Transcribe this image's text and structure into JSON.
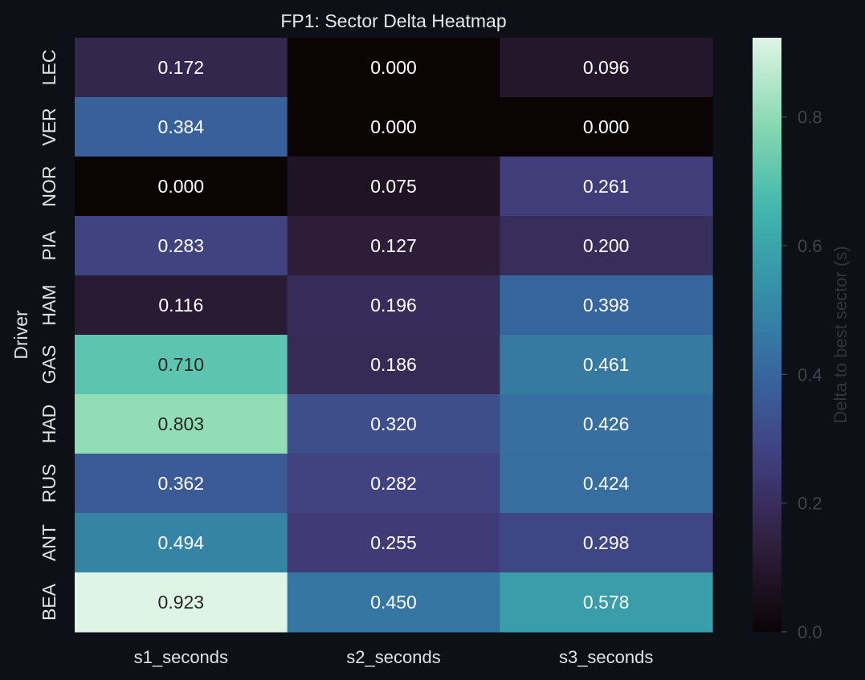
{
  "chart_data": {
    "type": "heatmap",
    "title": "FP1: Sector Delta Heatmap",
    "xlabel": "",
    "ylabel": "Driver",
    "columns": [
      "s1_seconds",
      "s2_seconds",
      "s3_seconds"
    ],
    "rows": [
      "LEC",
      "VER",
      "NOR",
      "PIA",
      "HAM",
      "GAS",
      "HAD",
      "RUS",
      "ANT",
      "BEA"
    ],
    "values": [
      [
        0.172,
        0.0,
        0.096
      ],
      [
        0.384,
        0.0,
        0.0
      ],
      [
        0.0,
        0.075,
        0.261
      ],
      [
        0.283,
        0.127,
        0.2
      ],
      [
        0.116,
        0.196,
        0.398
      ],
      [
        0.71,
        0.186,
        0.461
      ],
      [
        0.803,
        0.32,
        0.426
      ],
      [
        0.362,
        0.282,
        0.424
      ],
      [
        0.494,
        0.255,
        0.298
      ],
      [
        0.923,
        0.45,
        0.578
      ]
    ],
    "value_labels": [
      [
        "0.172",
        "0.000",
        "0.096"
      ],
      [
        "0.384",
        "0.000",
        "0.000"
      ],
      [
        "0.000",
        "0.075",
        "0.261"
      ],
      [
        "0.283",
        "0.127",
        "0.200"
      ],
      [
        "0.116",
        "0.196",
        "0.398"
      ],
      [
        "0.710",
        "0.186",
        "0.461"
      ],
      [
        "0.803",
        "0.320",
        "0.426"
      ],
      [
        "0.362",
        "0.282",
        "0.424"
      ],
      [
        "0.494",
        "0.255",
        "0.298"
      ],
      [
        "0.923",
        "0.450",
        "0.578"
      ]
    ],
    "colorbar": {
      "label": "Delta to best sector (s)",
      "range": [
        0,
        0.923
      ],
      "ticks": [
        0.0,
        0.2,
        0.4,
        0.6,
        0.8
      ],
      "tick_labels": [
        "0.0",
        "0.2",
        "0.4",
        "0.6",
        "0.8"
      ],
      "colormap": "mako",
      "colormap_stops": [
        "#0b0405",
        "#2e1e3b",
        "#413d7b",
        "#37659e",
        "#348fa7",
        "#40b7ad",
        "#8ad9b1",
        "#def5e5"
      ]
    },
    "annotation_colors": {
      "light": "#ffffff",
      "dark": "#262626"
    }
  }
}
